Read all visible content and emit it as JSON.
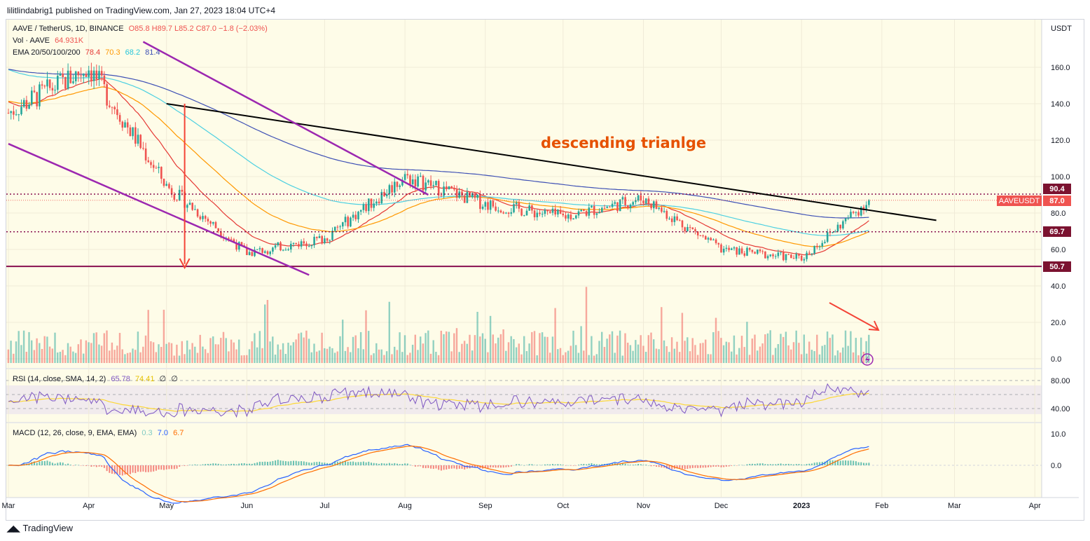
{
  "header": {
    "publisher_line": "lilitlindabrig1 published on TradingView.com, Jan 27, 2023 18:04 UTC+4"
  },
  "legend": {
    "symbol_line": "AAVE / TetherUS, 1D, BINANCE",
    "ohlc": "O85.8 H89.7 L85.2 C87.0 −1.8 (−2.03%)",
    "vol_label": "Vol · AAVE",
    "vol_value": "64.931K",
    "ema_label": "EMA 20/50/100/200",
    "ema_values": [
      "78.4",
      "70.3",
      "68.2",
      "81.4"
    ],
    "rsi_label": "RSI (14, close, SMA, 14, 2)",
    "rsi_values": [
      "65.78",
      "74.41",
      "∅",
      "∅"
    ],
    "macd_label": "MACD (12, 26, close, 9, EMA, EMA)",
    "macd_values": [
      "0.3",
      "7.0",
      "6.7"
    ]
  },
  "axis": {
    "currency": "USDT",
    "price_ticks": [
      "160.0",
      "140.0",
      "120.0",
      "100.0",
      "80.0",
      "60.0",
      "40.0",
      "20.0",
      "0.0"
    ],
    "rsi_ticks": [
      "80.00",
      "40.00"
    ],
    "macd_ticks": [
      "10.0",
      "0.0"
    ],
    "x_ticks": [
      "Mar",
      "Apr",
      "May",
      "Jun",
      "Jul",
      "Aug",
      "Sep",
      "Oct",
      "Nov",
      "Dec",
      "2023",
      "Feb",
      "Mar",
      "Apr"
    ]
  },
  "price_labels": {
    "level_high": "90.4",
    "symbol_tag": "AAVEUSDT",
    "last_price": "87.0",
    "level_mid": "69.7",
    "level_low": "50.7"
  },
  "annotation": {
    "pattern_text": "descending trianlge"
  },
  "colors": {
    "up": "#26a69a",
    "down": "#ef5350",
    "ema20": "#e53935",
    "ema50": "#ff9800",
    "ema100": "#4dd0e1",
    "ema200": "#3f51b5",
    "trendline": "#000000",
    "channel": "#9c27b0",
    "support": "#880e4f",
    "annotation_text": "#e65100",
    "rsi": "#7e57c2",
    "rsi_ma": "#fdd835",
    "macd": "#2962ff",
    "signal": "#ff6d00",
    "arrow": "#f44336"
  },
  "chart_data": {
    "type": "candlestick",
    "symbol": "AAVE / TetherUS",
    "interval": "1D",
    "exchange": "BINANCE",
    "y_unit": "USDT",
    "ylim": [
      0,
      175
    ],
    "horizontal_levels": [
      90.4,
      69.7,
      50.7
    ],
    "last_close": 87.0,
    "monthly_closes": {
      "dates": [
        "2022-03-01",
        "2022-04-01",
        "2022-05-01",
        "2022-06-01",
        "2022-07-01",
        "2022-08-01",
        "2022-09-01",
        "2022-10-01",
        "2022-11-01",
        "2022-12-01",
        "2023-01-01",
        "2023-01-27"
      ],
      "close": [
        135,
        160,
        95,
        58,
        66,
        100,
        85,
        78,
        88,
        60,
        55,
        87
      ]
    },
    "trendline_descending": {
      "start": [
        "2022-05-01",
        140
      ],
      "end": [
        "2023-02-22",
        76
      ]
    },
    "channel_upper": {
      "start": [
        "2022-04-22",
        174
      ],
      "end": [
        "2022-08-10",
        90
      ]
    },
    "channel_lower": {
      "start": [
        "2022-03-01",
        118
      ],
      "end": [
        "2022-06-25",
        46
      ]
    },
    "ema_last": {
      "ema20": 78.4,
      "ema50": 70.3,
      "ema100": 68.2,
      "ema200": 81.4
    },
    "rsi_last": {
      "rsi": 65.78,
      "sma": 74.41
    },
    "macd_last": {
      "histogram": 0.3,
      "macd": 7.0,
      "signal": 6.7
    }
  }
}
